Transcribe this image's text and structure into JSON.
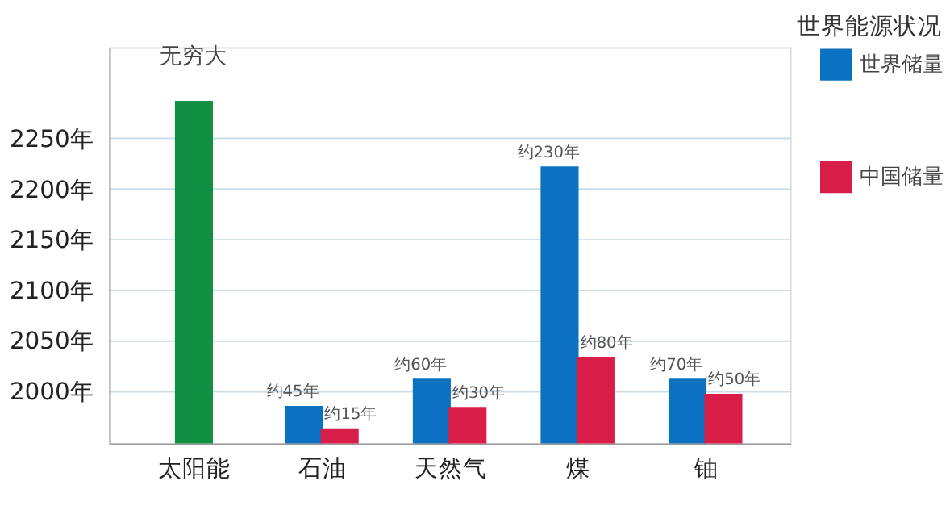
{
  "chart_data": {
    "type": "bar",
    "title": "世界能源状况",
    "categories": [
      "太阳能",
      "石油",
      "天然气",
      "煤",
      "铀"
    ],
    "series": [
      {
        "color": "#109040",
        "values": [
          2287,
          null,
          null,
          null,
          null
        ],
        "value_labels": [
          "无穷大",
          null,
          null,
          null,
          null
        ]
      },
      {
        "name": "世界储量",
        "color": "#0a72c0",
        "values": [
          null,
          1985,
          2012,
          2222,
          2012
        ],
        "value_labels": [
          null,
          "约45年",
          "约60年",
          "约230年",
          "约70年"
        ]
      },
      {
        "name": "中国储量",
        "color": "#d81e48",
        "values": [
          null,
          1963,
          1984,
          2033,
          1997
        ],
        "value_labels": [
          null,
          "约15年",
          "约30年",
          "约80年",
          "约50年"
        ]
      }
    ],
    "ylim": [
      1948,
      2340
    ],
    "yticks": [
      {
        "value": 2000,
        "label": "2000年"
      },
      {
        "value": 2050,
        "label": "2050年"
      },
      {
        "value": 2100,
        "label": "2100年"
      },
      {
        "value": 2150,
        "label": "2150年"
      },
      {
        "value": 2200,
        "label": "2200年"
      },
      {
        "value": 2250,
        "label": "2250年"
      }
    ],
    "grid": "y",
    "legend": "right"
  }
}
